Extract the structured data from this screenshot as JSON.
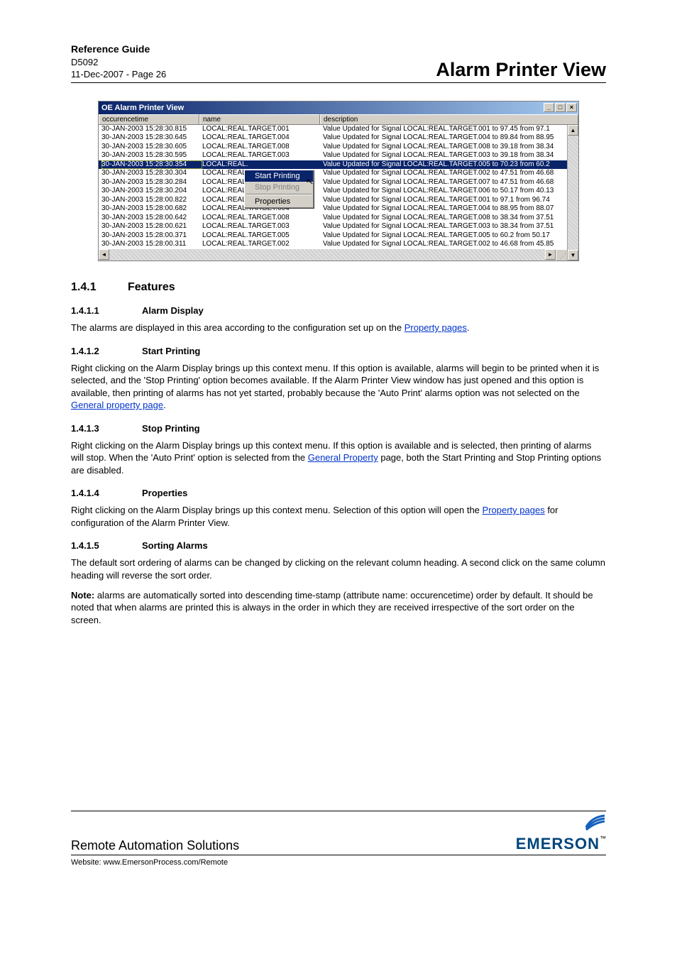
{
  "header": {
    "guide": "Reference Guide",
    "doc_id": "D5092",
    "date_page": "11-Dec-2007 - Page 26",
    "title": "Alarm Printer View"
  },
  "window": {
    "title": "OE Alarm Printer View",
    "btn_min": "_",
    "btn_max": "□",
    "btn_close": "×",
    "columns": {
      "time": "occurencetime",
      "name": "name",
      "desc": "description"
    },
    "rows": [
      {
        "t": "30-JAN-2003 15:28:30.815",
        "n": "LOCAL:REAL.TARGET.001",
        "d": "Value Updated for Signal LOCAL:REAL.TARGET.001 to 97.45 from 97.1"
      },
      {
        "t": "30-JAN-2003 15:28:30.645",
        "n": "LOCAL:REAL.TARGET.004",
        "d": "Value Updated for Signal LOCAL:REAL.TARGET.004 to 89.84 from 88.95"
      },
      {
        "t": "30-JAN-2003 15:28:30.605",
        "n": "LOCAL:REAL.TARGET.008",
        "d": "Value Updated for Signal LOCAL:REAL.TARGET.008 to 39.18 from 38.34"
      },
      {
        "t": "30-JAN-2003 15:28:30.595",
        "n": "LOCAL:REAL.TARGET.003",
        "d": "Value Updated for Signal LOCAL:REAL.TARGET.003 to 39.18 from 38.34"
      },
      {
        "t": "30-JAN-2003 15:28:30.354",
        "n": "LOCAL:REAL.",
        "d": "Value Updated for Signal LOCAL:REAL.TARGET.005 to 70.23 from 60.2",
        "sel": true
      },
      {
        "t": "30-JAN-2003 15:28:30.304",
        "n": "LOCAL:REAL.",
        "d": "Value Updated for Signal LOCAL:REAL.TARGET.002 to 47.51 from 46.68"
      },
      {
        "t": "30-JAN-2003 15:28:30.284",
        "n": "LOCAL:REAL.",
        "d": "Value Updated for Signal LOCAL:REAL.TARGET.007 to 47.51 from 46.68"
      },
      {
        "t": "30-JAN-2003 15:28:30.204",
        "n": "LOCAL:REAL.",
        "d": "Value Updated for Signal LOCAL:REAL.TARGET.006 to 50.17 from 40.13"
      },
      {
        "t": "30-JAN-2003 15:28:00.822",
        "n": "LOCAL:REAL.",
        "d": "Value Updated for Signal LOCAL:REAL.TARGET.001 to 97.1 from 96.74"
      },
      {
        "t": "30-JAN-2003 15:28:00.682",
        "n": "LOCAL:REAL.TARGET.004",
        "d": "Value Updated for Signal LOCAL:REAL.TARGET.004 to 88.95 from 88.07"
      },
      {
        "t": "30-JAN-2003 15:28:00.642",
        "n": "LOCAL:REAL.TARGET.008",
        "d": "Value Updated for Signal LOCAL:REAL.TARGET.008 to 38.34 from 37.51"
      },
      {
        "t": "30-JAN-2003 15:28:00.621",
        "n": "LOCAL:REAL.TARGET.003",
        "d": "Value Updated for Signal LOCAL:REAL.TARGET.003 to 38.34 from 37.51"
      },
      {
        "t": "30-JAN-2003 15:28:00.371",
        "n": "LOCAL:REAL.TARGET.005",
        "d": "Value Updated for Signal LOCAL:REAL.TARGET.005 to 60.2 from 50.17"
      },
      {
        "t": "30-JAN-2003 15:28:00.311",
        "n": "LOCAL:REAL.TARGET.002",
        "d": "Value Updated for Signal LOCAL:REAL.TARGET.002 to 46.68 from 45.85"
      }
    ],
    "context_menu": {
      "start": "Start Printing",
      "stop": "Stop Printing",
      "props": "Properties"
    },
    "scroll_up": "▲",
    "scroll_down": "▼",
    "scroll_left": "◄",
    "scroll_right": "►"
  },
  "sections": {
    "s141_num": "1.4.1",
    "s141_title": "Features",
    "s1411_num": "1.4.1.1",
    "s1411_title": "Alarm Display",
    "s1411_p_a": "The alarms are displayed in this area according to the configuration set up on the ",
    "s1411_link": "Property pages",
    "s1411_p_b": ".",
    "s1412_num": "1.4.1.2",
    "s1412_title": "Start Printing",
    "s1412_p_a": "Right clicking on the Alarm Display brings up this context menu. If this option is available, alarms will begin to be printed when it is selected, and the 'Stop Printing' option becomes available. If the Alarm Printer View window has just opened and this option is available, then printing of alarms has not yet started, probably because the 'Auto Print' alarms option was not selected on the ",
    "s1412_link": "General property page",
    "s1412_p_b": ".",
    "s1413_num": "1.4.1.3",
    "s1413_title": "Stop Printing",
    "s1413_p_a": "Right clicking on the Alarm Display brings up this context menu. If this option is available and is selected, then printing of alarms will stop. When the 'Auto Print' option is selected from the ",
    "s1413_link": "General Property",
    "s1413_p_b": " page, both the Start Printing and Stop Printing options are disabled.",
    "s1414_num": "1.4.1.4",
    "s1414_title": "Properties",
    "s1414_p_a": "Right clicking on the Alarm Display brings up this context menu. Selection of this option will open the ",
    "s1414_link": "Property pages",
    "s1414_p_b": " for configuration of the Alarm Printer View.",
    "s1415_num": "1.4.1.5",
    "s1415_title": "Sorting Alarms",
    "s1415_p1": "The default sort ordering of alarms can be changed by clicking on the relevant column heading. A second click on the same column heading will reverse the sort order.",
    "s1415_note_label": "Note:",
    "s1415_note": " alarms are automatically sorted into descending time-stamp (attribute name: occurencetime) order by default. It should be noted that when alarms are printed this is always in the order in which they are received irrespective of the sort order on the screen."
  },
  "footer": {
    "company": "Remote Automation Solutions",
    "website_label": "Website:  www.EmersonProcess.com/Remote",
    "logo_text": "EMERSON",
    "logo_sub": " "
  }
}
